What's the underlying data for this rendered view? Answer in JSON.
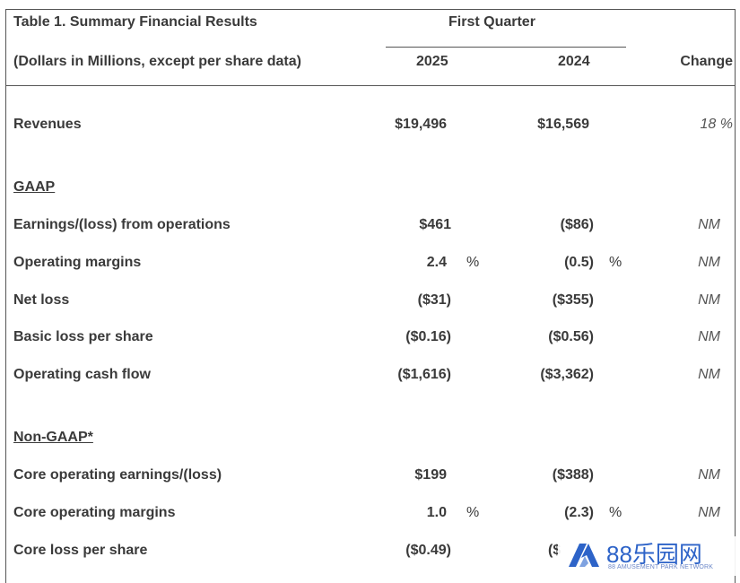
{
  "table": {
    "title": "Table 1. Summary Financial Results",
    "subtitle": "(Dollars in Millions, except per share data)",
    "group_header": "First Quarter",
    "col_2025": "2025",
    "col_2024": "2024",
    "col_change": "Change"
  },
  "revenues": {
    "label": "Revenues",
    "v2025": "$19,496",
    "v2024": "$16,569",
    "change": "18 %"
  },
  "gaap": {
    "heading": "GAAP",
    "rows": [
      {
        "label": "Earnings/(loss) from operations",
        "v2025": "$461",
        "v2024": "($86)",
        "change": "NM"
      },
      {
        "label": "Operating margins",
        "v2025": "2.4",
        "p2025": "%",
        "v2024": "(0.5)",
        "p2024": "%",
        "change": "NM"
      },
      {
        "label": "Net loss",
        "v2025": "($31)",
        "v2024": "($355)",
        "change": "NM"
      },
      {
        "label": "Basic loss per share",
        "v2025": "($0.16)",
        "v2024": "($0.56)",
        "change": "NM"
      },
      {
        "label": "Operating cash flow",
        "v2025": "($1,616)",
        "v2024": "($3,362)",
        "change": "NM"
      }
    ]
  },
  "nongaap": {
    "heading": "Non-GAAP*",
    "rows": [
      {
        "label": "Core operating earnings/(loss)",
        "v2025": "$199",
        "v2024": "($388)",
        "change": "NM"
      },
      {
        "label": "Core operating margins",
        "v2025": "1.0",
        "p2025": "%",
        "v2024": "(2.3)",
        "p2024": "%",
        "change": "NM"
      },
      {
        "label": "Core loss per share",
        "v2025": "($0.49)",
        "v2024": "($",
        "change": ""
      }
    ]
  },
  "watermark": {
    "text": "88乐园网",
    "sub": "88 AMUSEMENT PARK NETWORK",
    "color": "#2d63c8"
  }
}
